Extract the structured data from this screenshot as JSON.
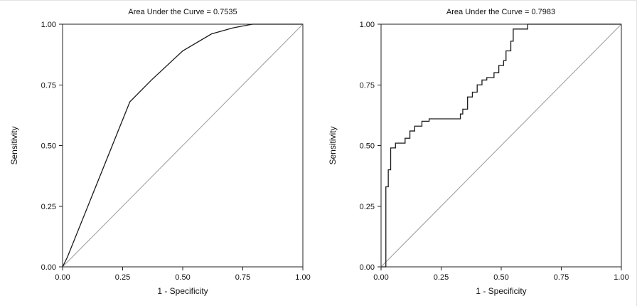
{
  "figure": {
    "background": "#ffffff",
    "panel_count": 2
  },
  "chart_data": [
    {
      "type": "line",
      "title": "Area Under the Curve = 0.7535",
      "auc": 0.7535,
      "xlabel": "1 - Specificity",
      "ylabel": "Sensitivity",
      "xlim": [
        0,
        1
      ],
      "ylim": [
        0,
        1
      ],
      "xticks": [
        0,
        0.25,
        0.5,
        0.75,
        1
      ],
      "yticks": [
        0,
        0.25,
        0.5,
        0.75,
        1
      ],
      "xtick_labels": [
        "0.00",
        "0.25",
        "0.50",
        "0.75",
        "1.00"
      ],
      "ytick_labels": [
        "0.00",
        "0.25",
        "0.50",
        "0.75",
        "1.00"
      ],
      "grid": false,
      "legend": "none",
      "series": [
        {
          "name": "roc-curve",
          "color": "#1a1a1a",
          "width": 1.3,
          "points": [
            [
              0.0,
              0.0
            ],
            [
              0.02,
              0.04
            ],
            [
              0.28,
              0.68
            ],
            [
              0.37,
              0.77
            ],
            [
              0.5,
              0.89
            ],
            [
              0.62,
              0.96
            ],
            [
              0.71,
              0.985
            ],
            [
              0.79,
              1.0
            ],
            [
              1.0,
              1.0
            ]
          ]
        },
        {
          "name": "reference-diagonal",
          "color": "#9b9b9b",
          "width": 1,
          "points": [
            [
              0,
              0
            ],
            [
              1,
              1
            ]
          ]
        }
      ]
    },
    {
      "type": "line",
      "title": "Area Under the Curve = 0.7983",
      "auc": 0.7983,
      "xlabel": "1 - Specificity",
      "ylabel": "Sensitivity",
      "xlim": [
        0,
        1
      ],
      "ylim": [
        0,
        1
      ],
      "xticks": [
        0,
        0.25,
        0.5,
        0.75,
        1
      ],
      "yticks": [
        0,
        0.25,
        0.5,
        0.75,
        1
      ],
      "xtick_labels": [
        "0.00",
        "0.25",
        "0.50",
        "0.75",
        "1.00"
      ],
      "ytick_labels": [
        "0.00",
        "0.25",
        "0.50",
        "0.75",
        "1.00"
      ],
      "grid": false,
      "legend": "none",
      "series": [
        {
          "name": "roc-curve",
          "color": "#1a1a1a",
          "width": 1.3,
          "points": [
            [
              0.0,
              0.0
            ],
            [
              0.02,
              0.0
            ],
            [
              0.02,
              0.33
            ],
            [
              0.03,
              0.33
            ],
            [
              0.03,
              0.4
            ],
            [
              0.04,
              0.4
            ],
            [
              0.04,
              0.49
            ],
            [
              0.06,
              0.49
            ],
            [
              0.06,
              0.51
            ],
            [
              0.1,
              0.51
            ],
            [
              0.1,
              0.53
            ],
            [
              0.12,
              0.53
            ],
            [
              0.12,
              0.56
            ],
            [
              0.14,
              0.56
            ],
            [
              0.14,
              0.58
            ],
            [
              0.17,
              0.58
            ],
            [
              0.17,
              0.6
            ],
            [
              0.2,
              0.6
            ],
            [
              0.2,
              0.61
            ],
            [
              0.33,
              0.61
            ],
            [
              0.33,
              0.63
            ],
            [
              0.34,
              0.63
            ],
            [
              0.34,
              0.65
            ],
            [
              0.36,
              0.65
            ],
            [
              0.36,
              0.7
            ],
            [
              0.38,
              0.7
            ],
            [
              0.38,
              0.72
            ],
            [
              0.4,
              0.72
            ],
            [
              0.4,
              0.75
            ],
            [
              0.42,
              0.75
            ],
            [
              0.42,
              0.77
            ],
            [
              0.44,
              0.77
            ],
            [
              0.44,
              0.78
            ],
            [
              0.47,
              0.78
            ],
            [
              0.47,
              0.8
            ],
            [
              0.49,
              0.8
            ],
            [
              0.49,
              0.83
            ],
            [
              0.51,
              0.83
            ],
            [
              0.51,
              0.85
            ],
            [
              0.52,
              0.85
            ],
            [
              0.52,
              0.89
            ],
            [
              0.54,
              0.89
            ],
            [
              0.54,
              0.93
            ],
            [
              0.55,
              0.93
            ],
            [
              0.55,
              0.98
            ],
            [
              0.61,
              0.98
            ],
            [
              0.61,
              1.0
            ],
            [
              1.0,
              1.0
            ]
          ]
        },
        {
          "name": "reference-diagonal",
          "color": "#9b9b9b",
          "width": 1,
          "points": [
            [
              0,
              0
            ],
            [
              1,
              1
            ]
          ]
        }
      ]
    }
  ]
}
